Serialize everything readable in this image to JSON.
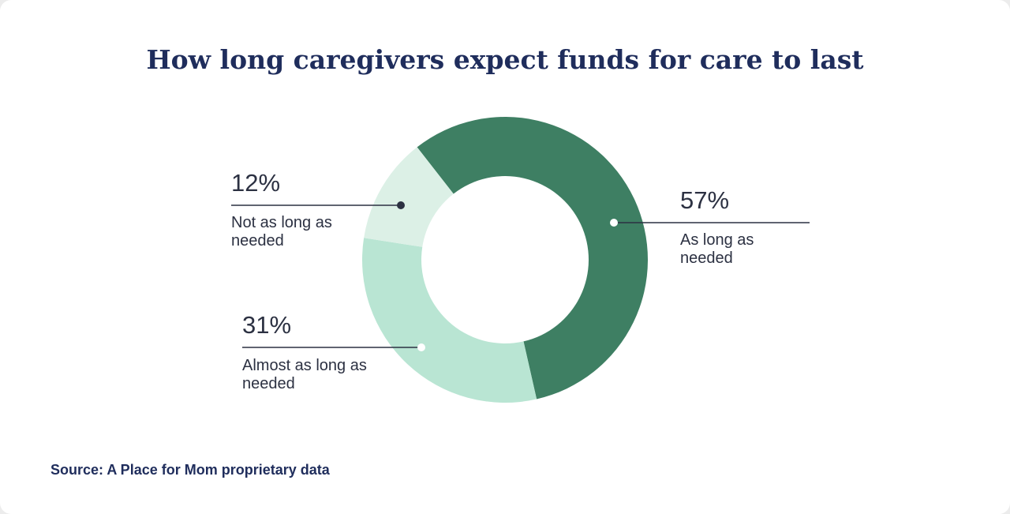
{
  "chart_data": {
    "type": "pie",
    "donut": true,
    "title": "How long caregivers expect funds for care to last",
    "categories": [
      "As long as needed",
      "Almost as long as needed",
      "Not as long as needed"
    ],
    "values": [
      57,
      31,
      12
    ],
    "value_labels": [
      "57%",
      "31%",
      "12%"
    ],
    "colors": [
      "#3e7f63",
      "#b9e5d3",
      "#dcf0e6"
    ],
    "source": "Source: A Place for Mom proprietary data"
  }
}
